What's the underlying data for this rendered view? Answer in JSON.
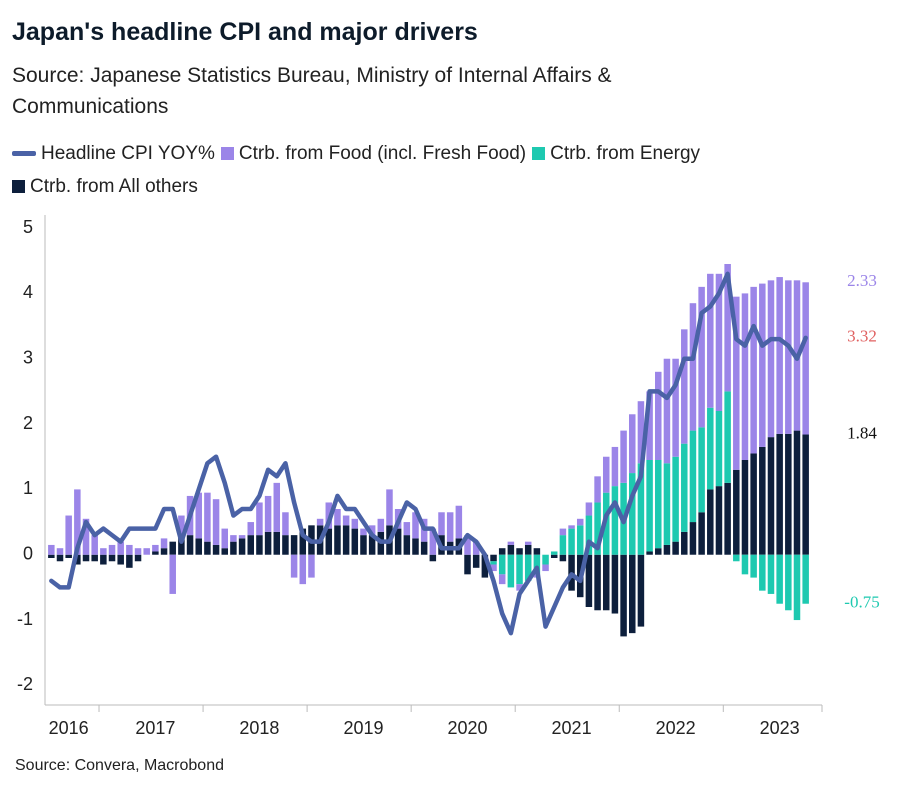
{
  "chart_data": {
    "type": "bar",
    "title": "Japan's headline CPI and major drivers",
    "subtitle": "Source: Japanese Statistics Bureau, Ministry of Internal Affairs & Communications",
    "footer": "Source: Convera, Macrobond",
    "categories": [
      null,
      null,
      "2016",
      null,
      null,
      null,
      null,
      null,
      null,
      null,
      null,
      null,
      "2017",
      null,
      null,
      null,
      null,
      null,
      null,
      null,
      null,
      null,
      null,
      null,
      "2018",
      null,
      null,
      null,
      null,
      null,
      null,
      null,
      null,
      null,
      null,
      null,
      "2019",
      null,
      null,
      null,
      null,
      null,
      null,
      null,
      null,
      null,
      null,
      null,
      "2020",
      null,
      null,
      null,
      null,
      null,
      null,
      null,
      null,
      null,
      null,
      null,
      "2021",
      null,
      null,
      null,
      null,
      null,
      null,
      null,
      null,
      null,
      null,
      null,
      "2022",
      null,
      null,
      null,
      null,
      null,
      null,
      null,
      null,
      null,
      null,
      null,
      "2023",
      null,
      null,
      null
    ],
    "series": [
      {
        "name": "Headline CPI YOY%",
        "type": "line",
        "color": "#4a62a6",
        "label_color": "#e06060",
        "values": [
          -0.4,
          -0.5,
          -0.5,
          0.1,
          0.5,
          0.3,
          0.4,
          0.3,
          0.2,
          0.4,
          0.4,
          0.4,
          0.4,
          0.7,
          0.7,
          0.2,
          0.6,
          1.0,
          1.4,
          1.5,
          1.1,
          0.6,
          0.7,
          0.7,
          0.9,
          1.3,
          1.2,
          1.4,
          0.8,
          0.3,
          0.2,
          0.2,
          0.5,
          0.9,
          0.7,
          0.7,
          0.5,
          0.3,
          0.2,
          0.2,
          0.5,
          0.8,
          0.7,
          0.4,
          0.4,
          0.1,
          0.1,
          0.1,
          0.3,
          0.2,
          0.0,
          -0.4,
          -0.9,
          -1.2,
          -0.6,
          -0.4,
          -0.2,
          -1.1,
          -0.8,
          -0.5,
          -0.3,
          -0.4,
          0.2,
          0.1,
          0.6,
          0.8,
          0.5,
          0.9,
          1.2,
          2.5,
          2.5,
          2.4,
          2.6,
          3.0,
          3.0,
          3.7,
          3.8,
          4.0,
          4.3,
          3.3,
          3.2,
          3.5,
          3.2,
          3.3,
          3.3,
          3.2,
          3.0,
          3.32
        ]
      },
      {
        "name": "Ctrb. from Food (incl. Fresh Food)",
        "type": "bar",
        "color": "#9b85e8",
        "label_color": "#9b85e8",
        "values": [
          0.15,
          0.1,
          0.6,
          1.0,
          0.55,
          0.3,
          0.1,
          0.15,
          0.2,
          0.15,
          0.1,
          0.1,
          0.1,
          0.15,
          -0.6,
          0.3,
          0.6,
          0.7,
          0.75,
          0.7,
          0.3,
          0.1,
          0.05,
          0.2,
          0.5,
          0.55,
          0.75,
          0.35,
          -0.35,
          -0.45,
          -0.35,
          0.1,
          0.4,
          0.25,
          0.15,
          0.15,
          0.1,
          0.15,
          0.2,
          0.55,
          0.3,
          0.2,
          0.4,
          0.35,
          0.4,
          0.35,
          0.45,
          0.5,
          0.3,
          0.2,
          0.0,
          -0.1,
          -0.15,
          0.05,
          -0.1,
          0.05,
          -0.05,
          -0.1,
          0.0,
          0.1,
          0.05,
          0.1,
          0.2,
          0.4,
          0.55,
          0.6,
          0.8,
          0.9,
          0.95,
          1.05,
          1.35,
          1.6,
          1.5,
          1.75,
          1.95,
          2.15,
          2.05,
          2.1,
          1.95,
          2.65,
          2.55,
          2.55,
          2.5,
          2.4,
          2.4,
          2.35,
          2.3,
          2.33
        ]
      },
      {
        "name": "Ctrb. from Energy",
        "type": "bar",
        "color": "#1ec9b0",
        "label_color": "#1ec9b0",
        "values": [
          0,
          0,
          0,
          0,
          0,
          0,
          0,
          0,
          0,
          0,
          0,
          0,
          0,
          0,
          0,
          0,
          0,
          0,
          0,
          0,
          0,
          0,
          0,
          0,
          0,
          0,
          0,
          0,
          0,
          0,
          0,
          0,
          0,
          0,
          0,
          0,
          0,
          0,
          0,
          0,
          0,
          0,
          0,
          0,
          0,
          0,
          0,
          0,
          0,
          0,
          0,
          -0.05,
          -0.3,
          -0.5,
          -0.45,
          -0.4,
          -0.3,
          -0.15,
          0.05,
          0.3,
          0.4,
          0.45,
          0.6,
          0.8,
          0.95,
          1.05,
          1.1,
          1.25,
          1.4,
          1.4,
          1.35,
          1.25,
          1.3,
          1.35,
          1.4,
          1.3,
          1.25,
          1.15,
          1.4,
          -0.1,
          -0.3,
          -0.35,
          -0.55,
          -0.6,
          -0.75,
          -0.85,
          -1.0,
          -0.75
        ]
      },
      {
        "name": "Ctrb. from All others",
        "type": "bar",
        "color": "#0d1f3c",
        "label_color": "#111111",
        "values": [
          -0.05,
          -0.1,
          -0.05,
          -0.15,
          -0.1,
          -0.1,
          -0.15,
          -0.1,
          -0.15,
          -0.2,
          -0.1,
          0.0,
          0.05,
          0.1,
          0.2,
          0.3,
          0.3,
          0.25,
          0.2,
          0.15,
          0.1,
          0.2,
          0.25,
          0.3,
          0.3,
          0.35,
          0.35,
          0.3,
          0.3,
          0.4,
          0.45,
          0.45,
          0.4,
          0.45,
          0.45,
          0.4,
          0.3,
          0.3,
          0.35,
          0.45,
          0.4,
          0.3,
          0.25,
          0.2,
          -0.1,
          0.3,
          0.2,
          0.25,
          -0.3,
          -0.2,
          -0.35,
          -0.1,
          0.1,
          0.15,
          0.1,
          0.15,
          0.1,
          0.0,
          -0.05,
          -0.1,
          -0.55,
          -0.65,
          -0.8,
          -0.85,
          -0.85,
          -0.9,
          -1.25,
          -1.2,
          -1.1,
          0.05,
          0.1,
          0.15,
          0.2,
          0.35,
          0.5,
          0.65,
          1.0,
          1.05,
          1.1,
          1.3,
          1.45,
          1.55,
          1.65,
          1.8,
          1.85,
          1.85,
          1.9,
          1.84
        ]
      }
    ],
    "ylim": [
      -2.3,
      5.2
    ],
    "yticks": [
      -2,
      -1,
      0,
      1,
      2,
      3,
      4,
      5
    ],
    "grid": false
  }
}
